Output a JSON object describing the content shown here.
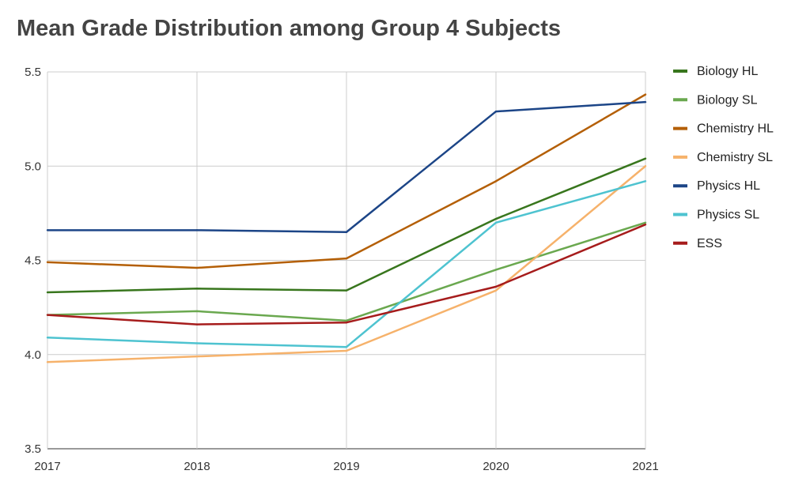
{
  "chart_data": {
    "type": "line",
    "title": "Mean Grade Distribution among Group 4 Subjects",
    "xlabel": "",
    "ylabel": "",
    "x": [
      "2017",
      "2018",
      "2019",
      "2020",
      "2021"
    ],
    "ylim": [
      3.5,
      5.5
    ],
    "yticks": [
      "3.5",
      "4.0",
      "4.5",
      "5.0",
      "5.5"
    ],
    "grid": true,
    "legend_position": "right",
    "series": [
      {
        "name": "Biology HL",
        "color": "#38761d",
        "values": [
          4.33,
          4.35,
          4.34,
          4.72,
          5.04
        ]
      },
      {
        "name": "Biology SL",
        "color": "#6aa84f",
        "values": [
          4.21,
          4.23,
          4.18,
          4.45,
          4.7
        ]
      },
      {
        "name": "Chemistry HL",
        "color": "#b45f06",
        "values": [
          4.49,
          4.46,
          4.51,
          4.92,
          5.38
        ]
      },
      {
        "name": "Chemistry SL",
        "color": "#f6b26b",
        "values": [
          3.96,
          3.99,
          4.02,
          4.34,
          5.0
        ]
      },
      {
        "name": "Physics HL",
        "color": "#1c4587",
        "values": [
          4.66,
          4.66,
          4.65,
          5.29,
          5.34
        ]
      },
      {
        "name": "Physics SL",
        "color": "#4ec3d0",
        "values": [
          4.09,
          4.06,
          4.04,
          4.7,
          4.92
        ]
      },
      {
        "name": "ESS",
        "color": "#a61c1c",
        "values": [
          4.21,
          4.16,
          4.17,
          4.36,
          4.69
        ]
      }
    ]
  }
}
